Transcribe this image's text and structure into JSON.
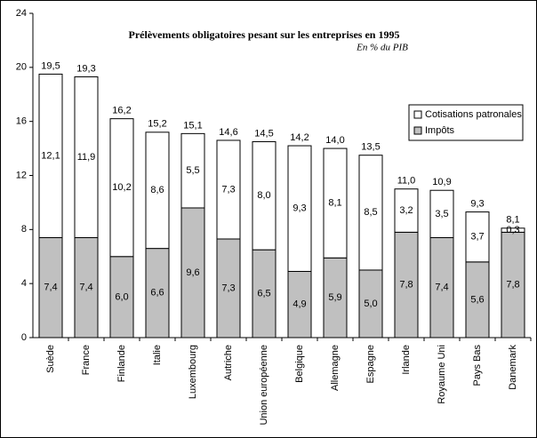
{
  "chart_data": {
    "type": "stacked-bar",
    "title": "Prélèvements obligatoires pesant sur les entreprises en 1995",
    "subtitle": "En % du PIB",
    "categories": [
      "Suède",
      "France",
      "Finlande",
      "Italie",
      "Luxembourg",
      "Autriche",
      "Union européenne",
      "Belgique",
      "Allemagne",
      "Espagne",
      "Irlande",
      "Royaume Uni",
      "Pays Bas",
      "Danemark"
    ],
    "series": [
      {
        "name": "Impôts",
        "color": "#c0c0c0",
        "values": [
          7.4,
          7.4,
          6.0,
          6.6,
          9.6,
          7.3,
          6.5,
          4.9,
          5.9,
          5.0,
          7.8,
          7.4,
          5.6,
          7.8
        ],
        "value_labels": [
          "7,4",
          "7,4",
          "6,0",
          "6,6",
          "9,6",
          "7,3",
          "6,5",
          "4,9",
          "5,9",
          "5,0",
          "7,8",
          "7,4",
          "5,6",
          "7,8"
        ]
      },
      {
        "name": "Cotisations patronales",
        "color": "#ffffff",
        "values": [
          12.1,
          11.9,
          10.2,
          8.6,
          5.5,
          7.3,
          8.0,
          9.3,
          8.1,
          8.5,
          3.2,
          3.5,
          3.7,
          0.3
        ],
        "value_labels": [
          "12,1",
          "11,9",
          "10,2",
          "8,6",
          "5,5",
          "7,3",
          "8,0",
          "9,3",
          "8,1",
          "8,5",
          "3,2",
          "3,5",
          "3,7",
          "0,3"
        ]
      }
    ],
    "totals": {
      "values": [
        19.5,
        19.3,
        16.2,
        15.2,
        15.1,
        14.6,
        14.5,
        14.2,
        14.0,
        13.5,
        11.0,
        10.9,
        9.3,
        8.1
      ],
      "value_labels": [
        "19,5",
        "19,3",
        "16,2",
        "15,2",
        "15,1",
        "14,6",
        "14,5",
        "14,2",
        "14,0",
        "13,5",
        "11,0",
        "10,9",
        "9,3",
        "8,1"
      ]
    },
    "ylim": [
      0,
      24
    ],
    "yticks": [
      0,
      4,
      8,
      12,
      16,
      20,
      24
    ],
    "grid": false,
    "legend": "top-right"
  }
}
